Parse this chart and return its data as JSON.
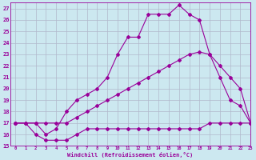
{
  "xlabel": "Windchill (Refroidissement éolien,°C)",
  "xlim": [
    -0.5,
    23
  ],
  "ylim": [
    15,
    27.5
  ],
  "xticks": [
    0,
    1,
    2,
    3,
    4,
    5,
    6,
    7,
    8,
    9,
    10,
    11,
    12,
    13,
    14,
    15,
    16,
    17,
    18,
    19,
    20,
    21,
    22,
    23
  ],
  "yticks": [
    15,
    16,
    17,
    18,
    19,
    20,
    21,
    22,
    23,
    24,
    25,
    26,
    27
  ],
  "bg_color": "#cce8f0",
  "line_color": "#990099",
  "grid_color": "#b0b8cc",
  "line1_x": [
    0,
    1,
    2,
    3,
    4,
    5,
    6,
    7,
    8,
    9,
    10,
    11,
    12,
    13,
    14,
    15,
    16,
    17,
    18,
    19,
    20,
    21,
    22,
    23
  ],
  "line1_y": [
    17,
    17,
    17,
    16,
    16.5,
    18,
    19,
    19.5,
    20,
    21,
    23,
    24.5,
    24.5,
    26.5,
    26.5,
    26.5,
    27.3,
    26.5,
    26,
    23,
    21,
    19,
    18.5,
    17
  ],
  "line2_x": [
    0,
    1,
    2,
    3,
    4,
    5,
    6,
    7,
    8,
    9,
    10,
    11,
    12,
    13,
    14,
    15,
    16,
    17,
    18,
    19,
    20,
    21,
    22,
    23
  ],
  "line2_y": [
    17,
    17,
    17,
    17,
    17,
    17,
    17.5,
    18,
    18.5,
    19,
    19.5,
    20,
    20.5,
    21,
    21.5,
    22,
    22.5,
    23,
    23.2,
    23,
    22,
    21,
    20,
    17
  ],
  "line3_x": [
    0,
    1,
    2,
    3,
    4,
    5,
    6,
    7,
    8,
    9,
    10,
    11,
    12,
    13,
    14,
    15,
    16,
    17,
    18,
    19,
    20,
    21,
    22,
    23
  ],
  "line3_y": [
    17,
    17,
    16,
    15.5,
    15.5,
    15.5,
    16,
    16.5,
    16.5,
    16.5,
    16.5,
    16.5,
    16.5,
    16.5,
    16.5,
    16.5,
    16.5,
    16.5,
    16.5,
    17,
    17,
    17,
    17,
    17
  ]
}
